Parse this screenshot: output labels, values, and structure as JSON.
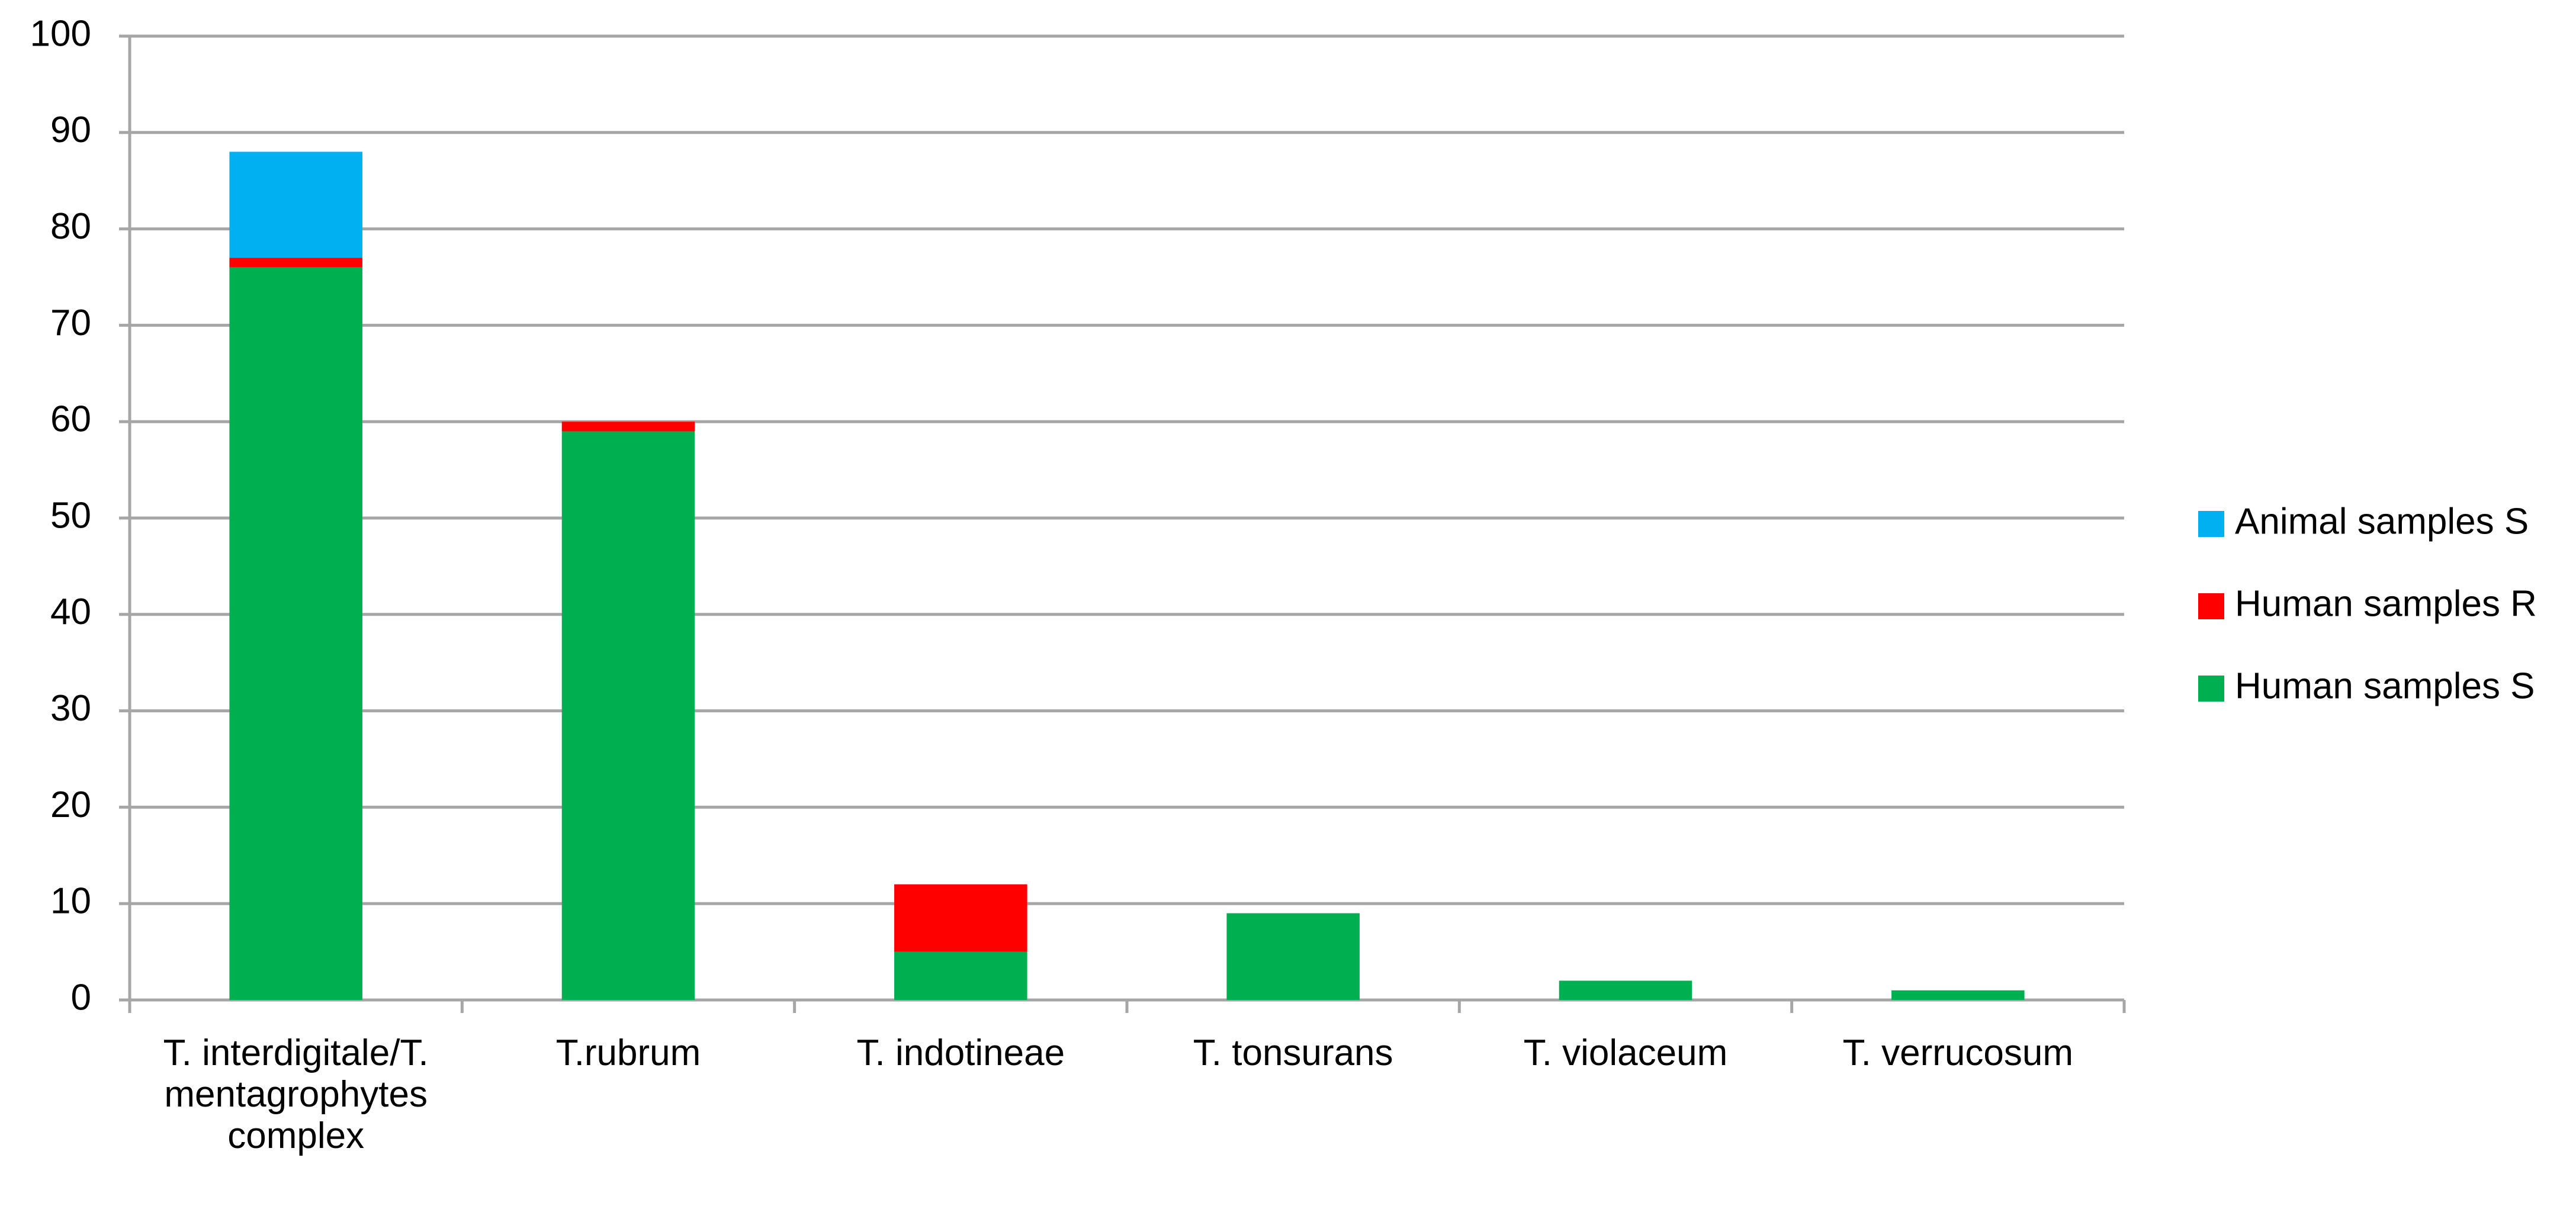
{
  "chart_data": {
    "type": "stacked_bar",
    "categories": [
      "T. interdigitale/T. mentagrophytes complex",
      "T.rubrum",
      "T. indotineae",
      "T. tonsurans",
      "T. violaceum",
      "T. verrucosum"
    ],
    "series": [
      {
        "name": "Human samples S",
        "color": "#00b050",
        "values": [
          76,
          59,
          5,
          9,
          2,
          1
        ]
      },
      {
        "name": "Human samples R",
        "color": "#ff0000",
        "values": [
          1,
          1,
          7,
          0,
          0,
          0
        ]
      },
      {
        "name": "Animal samples S",
        "color": "#00b0f0",
        "values": [
          11,
          0,
          0,
          0,
          0,
          0
        ]
      }
    ],
    "ylim": [
      0,
      100
    ],
    "yticks": [
      0,
      10,
      20,
      30,
      40,
      50,
      60,
      70,
      80,
      90,
      100
    ],
    "grid": true,
    "legend": "right"
  }
}
